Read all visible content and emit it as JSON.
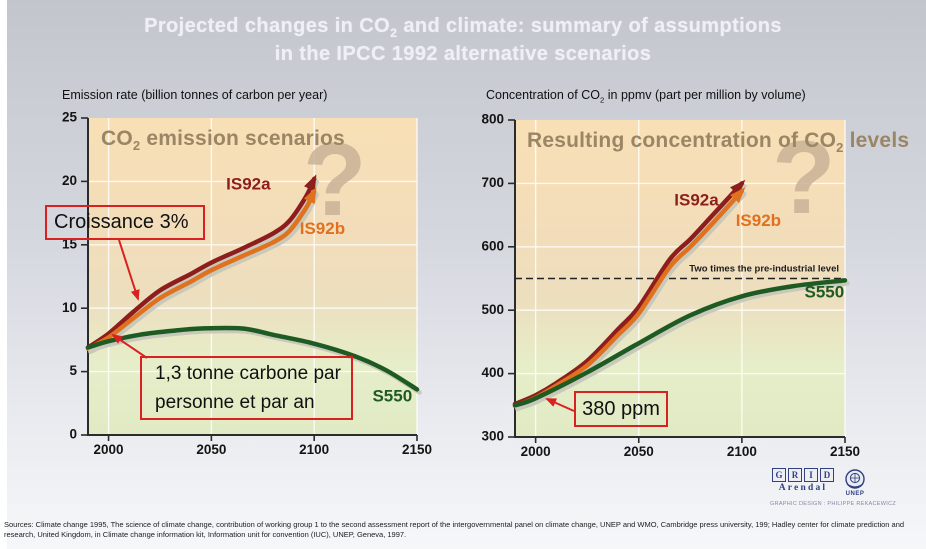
{
  "title": {
    "line1_pre": "Projected changes in CO",
    "line1_sub": "2",
    "line1_post": " and climate: summary of assumptions",
    "line2": "in the IPCC 1992 alternative scenarios"
  },
  "colors": {
    "is92a": "#8e1e1c",
    "is92b": "#e0711e",
    "s550": "#1e5b22",
    "annotation_red": "#d92121",
    "question_mark": "#c6ae93",
    "axis": "#2b2b2b",
    "grid_line": "#ffffff",
    "reference_line": "#222222",
    "inner_title": "#9a8565"
  },
  "annotations": {
    "croissance": "Croissance 3%",
    "tonne_line1": "1,3 tonne carbone par",
    "tonne_line2": "personne et par an",
    "ppm": "380 ppm"
  },
  "chart_data": [
    {
      "type": "line",
      "inner_title": {
        "pre": "CO",
        "sub": "2",
        "post": " emission scenarios"
      },
      "axis_label": {
        "pre": "Emission rate (billion tonnes of carbon per year)",
        "sub": "",
        "post": ""
      },
      "xlim": [
        1990,
        2150
      ],
      "ylim": [
        0,
        25
      ],
      "xticks": [
        2000,
        2050,
        2100,
        2150
      ],
      "yticks": [
        0,
        5,
        10,
        15,
        20,
        25
      ],
      "grid": true,
      "question_mark": {
        "text": "?",
        "x": 2110,
        "y": 19.5
      },
      "series": [
        {
          "name": "IS92a",
          "color": "#8e1e1c",
          "arrow": true,
          "label": {
            "x": 2068,
            "y": 19.7
          },
          "points": [
            [
              1990,
              6.9
            ],
            [
              2000,
              8.0
            ],
            [
              2012,
              9.7
            ],
            [
              2025,
              11.4
            ],
            [
              2040,
              12.7
            ],
            [
              2050,
              13.6
            ],
            [
              2065,
              14.7
            ],
            [
              2080,
              15.9
            ],
            [
              2088,
              16.9
            ],
            [
              2096,
              18.8
            ],
            [
              2100,
              20.2
            ]
          ]
        },
        {
          "name": "IS92b",
          "color": "#e0711e",
          "arrow": true,
          "label": {
            "x": 2104,
            "y": 16.2
          },
          "points": [
            [
              1990,
              6.8
            ],
            [
              2000,
              7.7
            ],
            [
              2012,
              9.2
            ],
            [
              2025,
              10.8
            ],
            [
              2040,
              12.1
            ],
            [
              2050,
              13.0
            ],
            [
              2065,
              14.1
            ],
            [
              2080,
              15.2
            ],
            [
              2088,
              16.1
            ],
            [
              2096,
              17.9
            ],
            [
              2100,
              19.2
            ]
          ]
        },
        {
          "name": "S550",
          "color": "#1e5b22",
          "arrow": false,
          "label": {
            "x": 2138,
            "y": 3.0
          },
          "points": [
            [
              1990,
              6.9
            ],
            [
              2000,
              7.4
            ],
            [
              2015,
              7.9
            ],
            [
              2030,
              8.2
            ],
            [
              2045,
              8.4
            ],
            [
              2065,
              8.4
            ],
            [
              2080,
              7.9
            ],
            [
              2100,
              7.2
            ],
            [
              2120,
              6.2
            ],
            [
              2135,
              5.1
            ],
            [
              2150,
              3.6
            ]
          ]
        }
      ]
    },
    {
      "type": "line",
      "inner_title": {
        "pre": "Resulting concentration of CO",
        "sub": "2",
        "post": " levels"
      },
      "axis_label": {
        "pre": "Concentration of CO",
        "sub": "2",
        "post": " in ppmv (part per million by volume)"
      },
      "xlim": [
        1990,
        2150
      ],
      "ylim": [
        300,
        800
      ],
      "xticks": [
        2000,
        2050,
        2100,
        2150
      ],
      "yticks": [
        300,
        400,
        500,
        600,
        700,
        800
      ],
      "grid": true,
      "reference_line": {
        "value": 550,
        "label": "Two times the pre-industrial level"
      },
      "question_mark": {
        "text": "?",
        "x": 2130,
        "y": 697
      },
      "series": [
        {
          "name": "IS92a",
          "color": "#8e1e1c",
          "arrow": true,
          "label": {
            "x": 2078,
            "y": 672
          },
          "points": [
            [
              1990,
              352
            ],
            [
              2000,
              366
            ],
            [
              2010,
              385
            ],
            [
              2025,
              420
            ],
            [
              2040,
              470
            ],
            [
              2050,
              505
            ],
            [
              2065,
              580
            ],
            [
              2075,
              612
            ],
            [
              2085,
              647
            ],
            [
              2100,
              700
            ]
          ]
        },
        {
          "name": "IS92b",
          "color": "#e0711e",
          "arrow": true,
          "label": {
            "x": 2108,
            "y": 640
          },
          "points": [
            [
              1990,
              349
            ],
            [
              2000,
              362
            ],
            [
              2010,
              381
            ],
            [
              2025,
              413
            ],
            [
              2040,
              461
            ],
            [
              2050,
              495
            ],
            [
              2065,
              568
            ],
            [
              2075,
              600
            ],
            [
              2085,
              634
            ],
            [
              2100,
              688
            ]
          ]
        },
        {
          "name": "S550",
          "color": "#1e5b22",
          "arrow": false,
          "label": {
            "x": 2140,
            "y": 527
          },
          "points": [
            [
              1990,
              350
            ],
            [
              2000,
              361
            ],
            [
              2025,
              402
            ],
            [
              2050,
              448
            ],
            [
              2075,
              492
            ],
            [
              2100,
              522
            ],
            [
              2125,
              538
            ],
            [
              2150,
              547
            ]
          ]
        }
      ]
    }
  ],
  "footer": {
    "sources": "Sources: Climate change 1995, The science of climate change, contribution of working group 1 to the second assessment report of the intergovernmental panel on climate change, UNEP and WMO, Cambridge press university, 199; Hadley center for climate prediction and research, United Kingdom, in Climate change information kit, Information unit for convention (IUC), UNEP, Geneva, 1997.",
    "grid_letters": [
      "G",
      "R",
      "I",
      "D"
    ],
    "grid_name": "Arendal",
    "unep_name": "UNEP",
    "credit": "GRAPHIC DESIGN : PHILIPPE REKACEWICZ"
  }
}
